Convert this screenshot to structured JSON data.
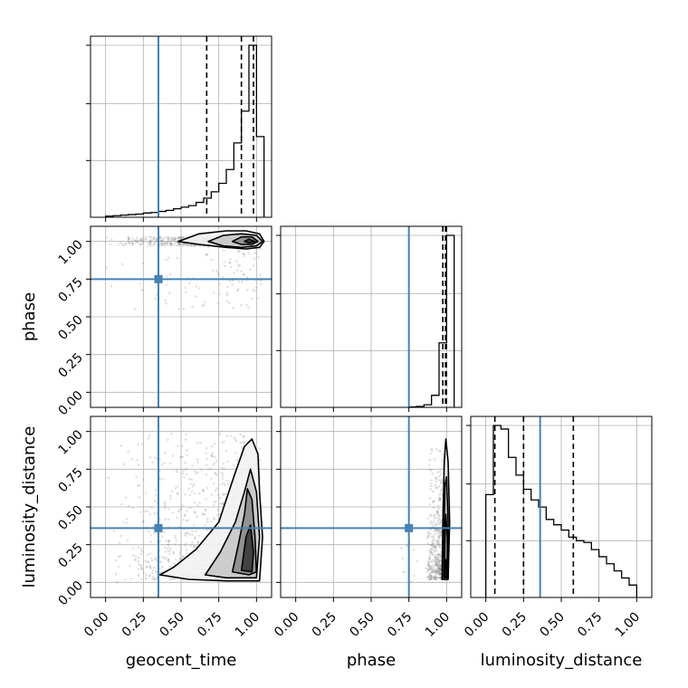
{
  "chart_data": {
    "type": "corner",
    "parameters": [
      "geocent_time",
      "phase",
      "luminosity_distance"
    ],
    "tick_values": [
      0.0,
      0.25,
      0.5,
      0.75,
      1.0
    ],
    "tick_labels": [
      "0.00",
      "0.25",
      "0.50",
      "0.75",
      "1.00"
    ],
    "axis_range": [
      -0.1,
      1.1
    ],
    "grid": true,
    "colors": {
      "truth": "#4682b4",
      "hist": "#000000",
      "quantile": "#000000"
    },
    "truth_values": {
      "geocent_time": 0.35,
      "phase": 0.75,
      "luminosity_distance": 0.36
    },
    "quantiles": {
      "geocent_time": [
        0.67,
        0.9,
        0.98
      ],
      "phase": [
        0.975,
        0.993,
        0.999
      ],
      "luminosity_distance": [
        0.06,
        0.25,
        0.58
      ]
    },
    "histograms": {
      "geocent_time": {
        "bin_edges": [
          0.0,
          0.05,
          0.1,
          0.15,
          0.2,
          0.25,
          0.3,
          0.35,
          0.4,
          0.45,
          0.5,
          0.55,
          0.6,
          0.65,
          0.7,
          0.75,
          0.8,
          0.85,
          0.9,
          0.95,
          1.0,
          1.05
        ],
        "counts": [
          1,
          1.5,
          2,
          2.5,
          3,
          4,
          4.5,
          5.5,
          6.5,
          8,
          9.5,
          11,
          14,
          18,
          24,
          32,
          45,
          70,
          100,
          162,
          76
        ]
      },
      "phase": {
        "bin_edges": [
          0.75,
          0.8,
          0.85,
          0.9,
          0.95,
          1.0,
          1.05
        ],
        "counts": [
          0.5,
          1,
          3,
          14,
          75,
          200
        ]
      },
      "luminosity_distance": {
        "bin_edges": [
          0.0,
          0.05,
          0.1,
          0.15,
          0.2,
          0.25,
          0.3,
          0.35,
          0.4,
          0.45,
          0.5,
          0.55,
          0.6,
          0.65,
          0.7,
          0.75,
          0.8,
          0.85,
          0.9,
          0.95,
          1.0
        ],
        "counts": [
          58,
          97,
          95,
          79,
          69,
          61,
          55,
          51,
          44,
          41,
          38,
          34,
          32,
          31,
          27,
          23,
          19,
          15,
          11,
          7
        ]
      }
    },
    "contours_2d": {
      "phase_vs_geocent_time": {
        "levels": [
          [
            [
              0.48,
              1.0
            ],
            [
              0.62,
              1.05
            ],
            [
              0.8,
              1.07
            ],
            [
              0.93,
              1.07
            ],
            [
              1.02,
              1.05
            ],
            [
              1.05,
              1.0
            ],
            [
              1.02,
              0.96
            ],
            [
              0.93,
              0.95
            ],
            [
              0.8,
              0.96
            ],
            [
              0.62,
              0.98
            ]
          ],
          [
            [
              0.68,
              1.0
            ],
            [
              0.78,
              1.04
            ],
            [
              0.9,
              1.05
            ],
            [
              1.0,
              1.04
            ],
            [
              1.04,
              1.0
            ],
            [
              1.0,
              0.97
            ],
            [
              0.9,
              0.96
            ],
            [
              0.78,
              0.97
            ]
          ],
          [
            [
              0.84,
              1.0
            ],
            [
              0.9,
              1.03
            ],
            [
              0.97,
              1.03
            ],
            [
              1.01,
              1.0
            ],
            [
              0.97,
              0.98
            ],
            [
              0.9,
              0.98
            ]
          ],
          [
            [
              0.92,
              1.0
            ],
            [
              0.95,
              1.015
            ],
            [
              0.99,
              1.0
            ],
            [
              0.95,
              0.99
            ]
          ]
        ]
      },
      "luminosity_distance_vs_geocent_time": {
        "levels": [
          [
            [
              0.36,
              0.05
            ],
            [
              0.55,
              0.02
            ],
            [
              0.8,
              0.01
            ],
            [
              1.02,
              0.01
            ],
            [
              1.04,
              0.3
            ],
            [
              1.02,
              0.6
            ],
            [
              1.01,
              0.85
            ],
            [
              0.97,
              0.95
            ],
            [
              0.92,
              0.9
            ],
            [
              0.85,
              0.7
            ],
            [
              0.75,
              0.4
            ],
            [
              0.6,
              0.22
            ],
            [
              0.45,
              0.1
            ]
          ],
          [
            [
              0.66,
              0.05
            ],
            [
              0.8,
              0.03
            ],
            [
              1.0,
              0.03
            ],
            [
              1.02,
              0.3
            ],
            [
              1.0,
              0.6
            ],
            [
              0.96,
              0.75
            ],
            [
              0.92,
              0.6
            ],
            [
              0.86,
              0.4
            ],
            [
              0.76,
              0.2
            ]
          ],
          [
            [
              0.84,
              0.07
            ],
            [
              0.95,
              0.05
            ],
            [
              1.0,
              0.07
            ],
            [
              0.99,
              0.3
            ],
            [
              0.97,
              0.55
            ],
            [
              0.94,
              0.62
            ],
            [
              0.92,
              0.45
            ],
            [
              0.88,
              0.25
            ]
          ],
          [
            [
              0.9,
              0.08
            ],
            [
              0.97,
              0.07
            ],
            [
              0.98,
              0.2
            ],
            [
              0.96,
              0.38
            ],
            [
              0.93,
              0.3
            ],
            [
              0.91,
              0.15
            ]
          ]
        ]
      },
      "luminosity_distance_vs_phase": {
        "levels": [
          [
            [
              0.97,
              0.02
            ],
            [
              1.01,
              0.02
            ],
            [
              1.02,
              0.4
            ],
            [
              1.01,
              0.8
            ],
            [
              0.995,
              0.95
            ],
            [
              0.985,
              0.8
            ],
            [
              0.975,
              0.4
            ]
          ],
          [
            [
              0.98,
              0.03
            ],
            [
              1.01,
              0.03
            ],
            [
              1.01,
              0.4
            ],
            [
              1.0,
              0.7
            ],
            [
              0.99,
              0.65
            ],
            [
              0.983,
              0.35
            ]
          ],
          [
            [
              0.985,
              0.04
            ],
            [
              1.005,
              0.04
            ],
            [
              1.005,
              0.3
            ],
            [
              0.995,
              0.45
            ],
            [
              0.988,
              0.25
            ]
          ],
          [
            [
              0.99,
              0.05
            ],
            [
              1.002,
              0.05
            ],
            [
              1.0,
              0.15
            ],
            [
              0.992,
              0.15
            ]
          ]
        ]
      }
    }
  }
}
